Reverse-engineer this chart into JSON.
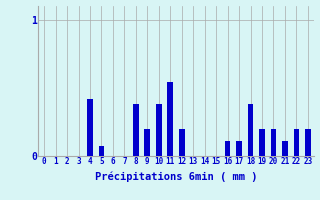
{
  "xlabel": "Précipitations 6min ( mm )",
  "background_color": "#d8f5f5",
  "bar_color": "#0000cc",
  "xlim": [
    -0.5,
    23.5
  ],
  "ylim": [
    0,
    1.1
  ],
  "yticks": [
    0,
    1
  ],
  "ytick_labels": [
    "0",
    "1"
  ],
  "xtick_labels": [
    "0",
    "1",
    "2",
    "3",
    "4",
    "5",
    "6",
    "7",
    "8",
    "9",
    "10",
    "11",
    "12",
    "13",
    "14",
    "15",
    "16",
    "17",
    "18",
    "19",
    "20",
    "21",
    "22",
    "23"
  ],
  "values": [
    0,
    0,
    0,
    0,
    0.42,
    0.07,
    0,
    0,
    0.38,
    0.2,
    0.38,
    0.54,
    0.2,
    0,
    0,
    0,
    0.11,
    0.11,
    0.38,
    0.2,
    0.2,
    0.11,
    0.2,
    0.2
  ],
  "grid_color": "#aaaaaa",
  "bar_width": 0.5
}
